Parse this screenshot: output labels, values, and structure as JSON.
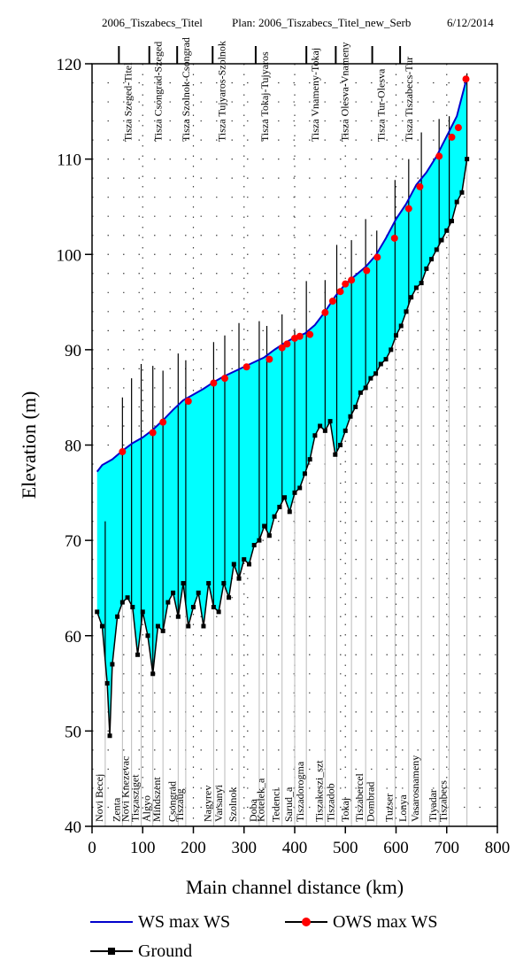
{
  "header": {
    "project": "2006_Tiszabecs_Titel",
    "plan": "Plan: 2006_Tiszabecs_Titel_new_Serb",
    "date": "6/12/2014"
  },
  "chart_data": {
    "type": "line",
    "xlabel": "Main channel distance (km)",
    "ylabel": "Elevation (m)",
    "xlim": [
      0,
      800
    ],
    "ylim": [
      40,
      120
    ],
    "xticks": [
      "0",
      "100",
      "200",
      "300",
      "400",
      "500",
      "600",
      "700",
      "800"
    ],
    "yticks": [
      "40",
      "50",
      "60",
      "70",
      "80",
      "90",
      "100",
      "110",
      "120"
    ],
    "grid": "dotted",
    "legend_position": "bottom",
    "colors": {
      "ws": "#0000cc",
      "ows": "#ff0000",
      "ground": "#000000",
      "fill": "#00ffff"
    },
    "series": [
      {
        "name": "WS max WS",
        "x": [
          10,
          20,
          40,
          60,
          80,
          100,
          120,
          140,
          160,
          180,
          200,
          220,
          240,
          260,
          280,
          300,
          320,
          340,
          360,
          380,
          400,
          420,
          440,
          460,
          480,
          500,
          520,
          540,
          560,
          580,
          600,
          620,
          640,
          660,
          680,
          700,
          720,
          740
        ],
        "y": [
          77.2,
          77.9,
          78.5,
          79.4,
          80.2,
          80.8,
          81.6,
          82.6,
          83.7,
          84.7,
          85.3,
          85.9,
          86.6,
          87.2,
          87.7,
          88.2,
          88.7,
          89.2,
          90.0,
          90.7,
          91.3,
          91.7,
          92.6,
          94.0,
          95.6,
          96.9,
          97.8,
          98.7,
          99.9,
          101.7,
          103.7,
          105.3,
          107.3,
          108.6,
          110.3,
          112.4,
          114.5,
          118.6
        ]
      },
      {
        "name": "OWS max WS",
        "x": [
          60,
          120,
          140,
          190,
          240,
          262,
          305,
          350,
          375,
          385,
          400,
          410,
          430,
          460,
          475,
          490,
          500,
          512,
          542,
          563,
          597,
          625,
          647,
          685,
          710,
          723,
          738
        ],
        "y": [
          79.3,
          81.3,
          82.4,
          84.6,
          86.5,
          87.0,
          88.2,
          89.0,
          90.2,
          90.6,
          91.2,
          91.4,
          91.6,
          93.9,
          95.1,
          96.1,
          96.9,
          97.3,
          98.3,
          99.7,
          101.7,
          104.8,
          107.1,
          110.3,
          112.3,
          113.3,
          118.4
        ]
      },
      {
        "name": "Ground",
        "x": [
          10,
          20,
          30,
          35,
          40,
          50,
          60,
          70,
          80,
          90,
          100,
          110,
          120,
          130,
          140,
          150,
          160,
          170,
          180,
          190,
          200,
          210,
          220,
          230,
          240,
          250,
          260,
          270,
          280,
          290,
          300,
          310,
          320,
          330,
          340,
          350,
          360,
          370,
          380,
          390,
          400,
          410,
          420,
          430,
          440,
          450,
          460,
          470,
          480,
          490,
          500,
          510,
          520,
          530,
          540,
          550,
          560,
          570,
          580,
          590,
          600,
          610,
          620,
          630,
          640,
          650,
          660,
          670,
          680,
          690,
          700,
          710,
          720,
          730,
          740
        ],
        "y": [
          62.5,
          61.0,
          55.0,
          49.5,
          57.0,
          62.0,
          63.5,
          64.0,
          63.0,
          58.0,
          62.5,
          60.0,
          56.0,
          61.0,
          60.5,
          63.5,
          64.5,
          62.0,
          65.5,
          61.0,
          63.0,
          64.5,
          61.0,
          65.5,
          63.0,
          62.5,
          65.5,
          64.0,
          67.5,
          66.0,
          68.0,
          67.5,
          69.5,
          70.0,
          71.5,
          70.5,
          72.5,
          73.5,
          74.5,
          73.0,
          75.0,
          75.5,
          77.0,
          78.5,
          81.0,
          82.0,
          81.5,
          82.5,
          79.0,
          80.0,
          81.5,
          83.0,
          84.0,
          85.5,
          86.0,
          87.0,
          87.5,
          88.5,
          89.0,
          90.0,
          91.5,
          92.5,
          94.0,
          95.5,
          96.5,
          97.0,
          98.5,
          99.5,
          100.5,
          101.5,
          102.5,
          103.5,
          105.5,
          106.5,
          110.0
        ]
      }
    ],
    "markers": [
      {
        "x": 26,
        "y_bottom": 40,
        "y_top": 72,
        "label": "Novi Becej"
      },
      {
        "x": 60,
        "y_bottom": 40,
        "y_top": 85,
        "label": "Zenta"
      },
      {
        "x": 78,
        "y_bottom": 40,
        "y_top": 87,
        "label": "Novi Knezevac"
      },
      {
        "x": 97,
        "y_bottom": 40,
        "y_top": 88.5,
        "label": "Tiszasziget"
      },
      {
        "x": 120,
        "y_bottom": 40,
        "y_top": 88.3,
        "label": "Algyo"
      },
      {
        "x": 140,
        "y_bottom": 40,
        "y_top": 87.8,
        "label": "Mindszent"
      },
      {
        "x": 170,
        "y_bottom": 40,
        "y_top": 89.6,
        "label": "Csongrad"
      },
      {
        "x": 185,
        "y_bottom": 40,
        "y_top": 88.9,
        "label": "Tiszaug"
      },
      {
        "x": 240,
        "y_bottom": 40,
        "y_top": 90.8,
        "label": "Nagyrev"
      },
      {
        "x": 262,
        "y_bottom": 40,
        "y_top": 91.5,
        "label": "Varsanyi"
      },
      {
        "x": 290,
        "y_bottom": 40,
        "y_top": 92.8,
        "label": "Szolnok"
      },
      {
        "x": 330,
        "y_bottom": 40,
        "y_top": 93.0,
        "label": "Doba"
      },
      {
        "x": 345,
        "y_bottom": 40,
        "y_top": 92.5,
        "label": "Kotelek_a"
      },
      {
        "x": 375,
        "y_bottom": 40,
        "y_top": 93.7,
        "label": "Tedenci"
      },
      {
        "x": 400,
        "y_bottom": 40,
        "y_top": 92.0,
        "label": "Sarud_a"
      },
      {
        "x": 423,
        "y_bottom": 40,
        "y_top": 97.2,
        "label": "Tiszadorogma"
      },
      {
        "x": 460,
        "y_bottom": 40,
        "y_top": 97.3,
        "label": "Tiszakeszi_szt"
      },
      {
        "x": 483,
        "y_bottom": 40,
        "y_top": 101.0,
        "label": "Tiszadob"
      },
      {
        "x": 512,
        "y_bottom": 40,
        "y_top": 101.5,
        "label": "Tokaj"
      },
      {
        "x": 540,
        "y_bottom": 40,
        "y_top": 103.7,
        "label": "Tiszabercel"
      },
      {
        "x": 562,
        "y_bottom": 40,
        "y_top": 102.5,
        "label": "Dombrad"
      },
      {
        "x": 598,
        "y_bottom": 40,
        "y_top": 107.8,
        "label": "Tuzser"
      },
      {
        "x": 625,
        "y_bottom": 40,
        "y_top": 110.0,
        "label": "Lonya"
      },
      {
        "x": 650,
        "y_bottom": 40,
        "y_top": 112.8,
        "label": "Vasarosnameny"
      },
      {
        "x": 685,
        "y_bottom": 40,
        "y_top": 114.2,
        "label": "Tiyadar"
      },
      {
        "x": 705,
        "y_bottom": 40,
        "y_top": 114.5,
        "label": "Tiszabecs"
      },
      {
        "x": 740,
        "y_bottom": 40,
        "y_top": 119.0,
        "label": ""
      }
    ],
    "reaches": [
      {
        "label": "Tisza Szeged-Titel",
        "x": 60
      },
      {
        "label": "Tisza Csongrad-Szeged",
        "x": 120
      },
      {
        "label": "Tisza Szolnok-Csongrad",
        "x": 175
      },
      {
        "label": "Tisza Tujyaros-Szolnok",
        "x": 245
      },
      {
        "label": "Tisza Tokaj-Tujyaros",
        "x": 330
      },
      {
        "label": "Tisza Vnameny-Tokaj",
        "x": 430
      },
      {
        "label": "Tisza Olesva-Vnameny",
        "x": 488
      },
      {
        "label": "Tisza Tur-Olesva",
        "x": 560
      },
      {
        "label": "Tisza Tiszabecs-Tur",
        "x": 615
      }
    ],
    "reach_labels": [
      "Tisza Szeged-Titel",
      "Tisza Csongrad-Szeged",
      "Tisza Szolnok-Csongrad",
      "Tisza Tujyaros-Szolnok",
      "Tisza Tokaj-Tujyaros",
      "Tisza Vnameny-Tokaj",
      "Tisza Olesva-Vnameny",
      "Tisza Tur-Olesva",
      "Tisza Tiszabecs-Tur"
    ]
  },
  "legend": {
    "ws": "WS max WS",
    "ows": "OWS max WS",
    "ground": "Ground"
  }
}
